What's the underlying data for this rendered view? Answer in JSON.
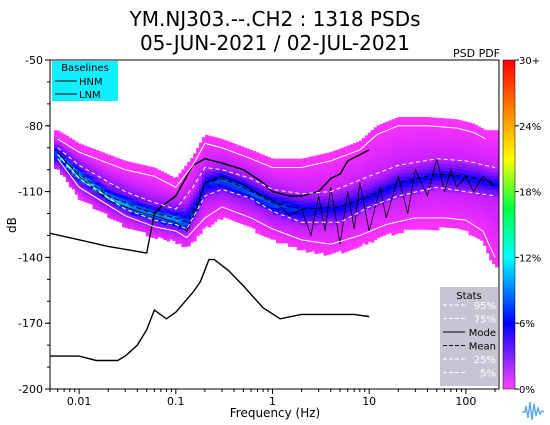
{
  "chart_data": {
    "type": "heatmap",
    "title": "YM.NJ303.--.CH2 : 1318 PSDs",
    "subtitle": "05-JUN-2021 / 02-JUL-2021",
    "corner_label": "PSD PDF",
    "xlabel": "Frequency (Hz)",
    "ylabel": "dB",
    "x_scale": "log",
    "xlim": [
      0.005,
      220
    ],
    "ylim": [
      -200,
      -50
    ],
    "x_ticks": [
      {
        "value": 0.01,
        "label": "0.01"
      },
      {
        "value": 0.1,
        "label": "0.1"
      },
      {
        "value": 1,
        "label": "1"
      },
      {
        "value": 10,
        "label": "10"
      },
      {
        "value": 100,
        "label": "100"
      }
    ],
    "y_ticks": [
      {
        "value": -50,
        "label": "-50"
      },
      {
        "value": -80,
        "label": "-80"
      },
      {
        "value": -110,
        "label": "-110"
      },
      {
        "value": -140,
        "label": "-140"
      },
      {
        "value": -170,
        "label": "-170"
      },
      {
        "value": -200,
        "label": "-200"
      }
    ],
    "colorbar": {
      "ticks": [
        {
          "value": 0,
          "label": "0%"
        },
        {
          "value": 6,
          "label": "6%"
        },
        {
          "value": 12,
          "label": "12%"
        },
        {
          "value": 18,
          "label": "18%"
        },
        {
          "value": 24,
          "label": "24%"
        },
        {
          "value": 30,
          "label": "30+"
        }
      ],
      "range": [
        0,
        30
      ]
    },
    "baselines_legend": {
      "title": "Baselines",
      "entries": [
        "HNM",
        "LNM"
      ],
      "background": "#11eeff"
    },
    "stats_legend": {
      "title": "Stats",
      "entries": [
        {
          "label": "95%",
          "style": "dashed-white"
        },
        {
          "label": "75%",
          "style": "dashed-white"
        },
        {
          "label": "Mode",
          "style": "solid-black"
        },
        {
          "label": "Mean",
          "style": "dashed-black"
        },
        {
          "label": "25%",
          "style": "dashed-white"
        },
        {
          "label": "5%",
          "style": "dashed-white"
        }
      ],
      "background": "#cccccc"
    },
    "series": [
      {
        "name": "HNM",
        "color": "#000000",
        "points": [
          [
            0.005,
            -129
          ],
          [
            0.01,
            -132
          ],
          [
            0.02,
            -135
          ],
          [
            0.05,
            -138
          ],
          [
            0.06,
            -120
          ],
          [
            0.07,
            -117
          ],
          [
            0.1,
            -112
          ],
          [
            0.15,
            -98
          ],
          [
            0.2,
            -95
          ],
          [
            0.3,
            -97
          ],
          [
            0.5,
            -100
          ],
          [
            0.8,
            -106
          ],
          [
            1,
            -110
          ],
          [
            1.5,
            -112
          ],
          [
            2,
            -112
          ],
          [
            3,
            -110
          ],
          [
            4,
            -104
          ],
          [
            5,
            -102
          ],
          [
            6,
            -96
          ],
          [
            10,
            -91
          ]
        ]
      },
      {
        "name": "LNM",
        "color": "#000000",
        "points": [
          [
            0.005,
            -185
          ],
          [
            0.01,
            -185
          ],
          [
            0.015,
            -187
          ],
          [
            0.025,
            -187
          ],
          [
            0.03,
            -185
          ],
          [
            0.04,
            -180
          ],
          [
            0.05,
            -173
          ],
          [
            0.06,
            -164
          ],
          [
            0.08,
            -168
          ],
          [
            0.1,
            -165
          ],
          [
            0.15,
            -156
          ],
          [
            0.18,
            -151
          ],
          [
            0.22,
            -141
          ],
          [
            0.25,
            -141
          ],
          [
            0.35,
            -146
          ],
          [
            0.5,
            -153
          ],
          [
            0.8,
            -163
          ],
          [
            1.2,
            -168
          ],
          [
            2,
            -166
          ],
          [
            4,
            -166
          ],
          [
            7,
            -166
          ],
          [
            10,
            -167
          ]
        ]
      },
      {
        "name": "Mode",
        "color": "#000000",
        "points": [
          [
            0.006,
            -92
          ],
          [
            0.01,
            -103
          ],
          [
            0.02,
            -114
          ],
          [
            0.04,
            -119
          ],
          [
            0.06,
            -121
          ],
          [
            0.1,
            -124
          ],
          [
            0.13,
            -128
          ],
          [
            0.17,
            -116
          ],
          [
            0.2,
            -106
          ],
          [
            0.3,
            -103
          ],
          [
            0.5,
            -107
          ],
          [
            0.8,
            -112
          ],
          [
            1.1,
            -115
          ],
          [
            1.5,
            -121
          ],
          [
            2,
            -118
          ],
          [
            2.5,
            -130
          ],
          [
            3,
            -112
          ],
          [
            3.5,
            -128
          ],
          [
            4,
            -108
          ],
          [
            5,
            -134
          ],
          [
            6,
            -110
          ],
          [
            7,
            -127
          ],
          [
            8,
            -106
          ],
          [
            10,
            -128
          ],
          [
            13,
            -108
          ],
          [
            15,
            -122
          ],
          [
            20,
            -103
          ],
          [
            25,
            -120
          ],
          [
            30,
            -100
          ],
          [
            40,
            -112
          ],
          [
            50,
            -95
          ],
          [
            60,
            -110
          ],
          [
            70,
            -100
          ],
          [
            80,
            -108
          ],
          [
            100,
            -103
          ],
          [
            120,
            -110
          ],
          [
            150,
            -103
          ],
          [
            200,
            -108
          ]
        ]
      },
      {
        "name": "Mean",
        "color": "#000000",
        "points": [
          [
            0.006,
            -93
          ],
          [
            0.01,
            -102
          ],
          [
            0.02,
            -112
          ],
          [
            0.05,
            -119
          ],
          [
            0.1,
            -122
          ],
          [
            0.13,
            -124
          ],
          [
            0.17,
            -115
          ],
          [
            0.2,
            -106
          ],
          [
            0.3,
            -104
          ],
          [
            0.5,
            -108
          ],
          [
            1,
            -115
          ],
          [
            2,
            -118
          ],
          [
            5,
            -117
          ],
          [
            10,
            -112
          ],
          [
            20,
            -106
          ],
          [
            50,
            -102
          ],
          [
            100,
            -103
          ],
          [
            200,
            -106
          ]
        ]
      },
      {
        "name": "95%",
        "color": "#ffffff",
        "points": [
          [
            0.006,
            -86
          ],
          [
            0.01,
            -92
          ],
          [
            0.03,
            -100
          ],
          [
            0.06,
            -103
          ],
          [
            0.1,
            -108
          ],
          [
            0.15,
            -98
          ],
          [
            0.2,
            -88
          ],
          [
            0.3,
            -90
          ],
          [
            0.6,
            -95
          ],
          [
            1,
            -99
          ],
          [
            2,
            -99
          ],
          [
            4,
            -96
          ],
          [
            8,
            -91
          ],
          [
            12,
            -84
          ],
          [
            20,
            -80
          ],
          [
            40,
            -80
          ],
          [
            80,
            -81
          ],
          [
            120,
            -83
          ],
          [
            160,
            -86
          ]
        ]
      },
      {
        "name": "75%",
        "color": "#ffffff",
        "points": [
          [
            0.006,
            -90
          ],
          [
            0.01,
            -98
          ],
          [
            0.03,
            -110
          ],
          [
            0.06,
            -115
          ],
          [
            0.1,
            -118
          ],
          [
            0.15,
            -108
          ],
          [
            0.2,
            -99
          ],
          [
            0.3,
            -100
          ],
          [
            0.6,
            -104
          ],
          [
            1,
            -109
          ],
          [
            2,
            -111
          ],
          [
            4,
            -110
          ],
          [
            10,
            -103
          ],
          [
            20,
            -98
          ],
          [
            50,
            -95
          ],
          [
            100,
            -96
          ],
          [
            200,
            -99
          ]
        ]
      },
      {
        "name": "25%",
        "color": "#ffffff",
        "points": [
          [
            0.006,
            -93
          ],
          [
            0.01,
            -104
          ],
          [
            0.03,
            -118
          ],
          [
            0.06,
            -123
          ],
          [
            0.1,
            -125
          ],
          [
            0.13,
            -127
          ],
          [
            0.2,
            -112
          ],
          [
            0.3,
            -109
          ],
          [
            0.6,
            -113
          ],
          [
            1,
            -119
          ],
          [
            2,
            -124
          ],
          [
            5,
            -124
          ],
          [
            10,
            -117
          ],
          [
            20,
            -112
          ],
          [
            50,
            -108
          ],
          [
            100,
            -110
          ],
          [
            200,
            -112
          ]
        ]
      },
      {
        "name": "5%",
        "color": "#ffffff",
        "points": [
          [
            0.006,
            -95
          ],
          [
            0.01,
            -108
          ],
          [
            0.03,
            -121
          ],
          [
            0.06,
            -126
          ],
          [
            0.1,
            -128
          ],
          [
            0.13,
            -131
          ],
          [
            0.2,
            -122
          ],
          [
            0.3,
            -117
          ],
          [
            0.6,
            -122
          ],
          [
            1,
            -127
          ],
          [
            2,
            -132
          ],
          [
            4,
            -134
          ],
          [
            8,
            -130
          ],
          [
            15,
            -125
          ],
          [
            30,
            -122
          ],
          [
            60,
            -122
          ],
          [
            100,
            -123
          ],
          [
            150,
            -128
          ],
          [
            200,
            -140
          ]
        ]
      }
    ],
    "colors": {
      "hot": "#ff0000",
      "green": "#55ff00",
      "cyan": "#00ffff",
      "blue": "#0000ff",
      "magenta": "#ff00ff"
    }
  }
}
